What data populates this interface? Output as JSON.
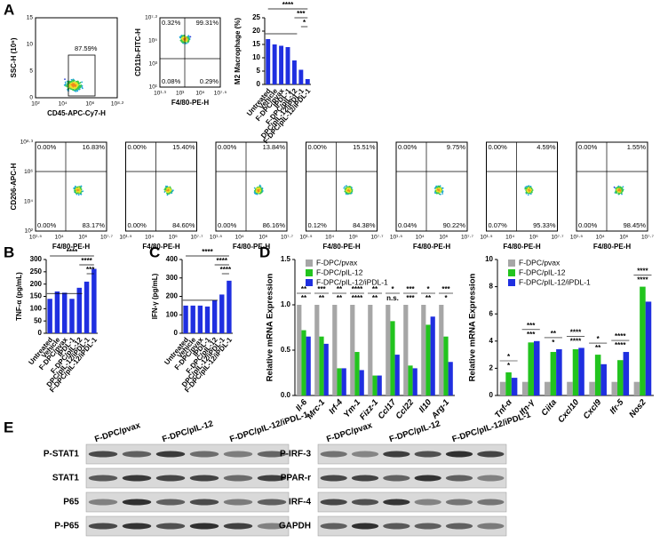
{
  "panel_labels": [
    "A",
    "B",
    "C",
    "D",
    "E"
  ],
  "flow": {
    "top": [
      {
        "ylabel": "SSC-H (10⁶)",
        "xlabel": "CD45-APC-Cy7-H",
        "yticks": [
          "15",
          "10",
          "5",
          "0"
        ],
        "xticks": [
          "10²",
          "10⁴",
          "10⁶",
          "10⁸·²"
        ],
        "gate": "87.59%"
      },
      {
        "ylabel": "CD11b-FITC-H",
        "xlabel": "F4/80-PE-H",
        "yticks": [
          "10⁷·²",
          "10⁵",
          "10³",
          "10¹"
        ],
        "xticks": [
          "10¹·³",
          "10³",
          "10⁵",
          "10⁷·⁵"
        ],
        "quadrants": [
          "0.32%",
          "99.31%",
          "0.08%",
          "0.29%"
        ]
      }
    ],
    "cd206": {
      "ylabel": "CD206-APC-H",
      "xlabel": "F4/80-PE-H",
      "yticks": [
        "10⁸·³",
        "10⁶",
        "10⁴",
        "10²"
      ],
      "xticks": [
        "10¹·⁵",
        "10⁴",
        "10⁶",
        "10⁷·⁷"
      ],
      "plots": [
        [
          "0.00%",
          "16.83%",
          "0.00%",
          "83.17%"
        ],
        [
          "0.00%",
          "15.40%",
          "0.00%",
          "84.60%"
        ],
        [
          "0.00%",
          "13.84%",
          "0.00%",
          "86.16%"
        ],
        [
          "0.00%",
          "15.51%",
          "0.12%",
          "84.38%"
        ],
        [
          "0.00%",
          "9.75%",
          "0.04%",
          "90.22%"
        ],
        [
          "0.00%",
          "4.59%",
          "0.07%",
          "95.33%"
        ],
        [
          "0.00%",
          "1.55%",
          "0.00%",
          "98.45%"
        ]
      ]
    }
  },
  "chart_data": [
    {
      "type": "bar",
      "ylabel": "M2 Macrophage (%)",
      "categories": [
        "Untreated",
        "Vehicle",
        "F-DPC/pvax",
        "IPDL-1",
        "F-DPC/pIL-12",
        "DPC/pIL-12/iPDL-1",
        "F-DPC/pIL-12/iPDL-1"
      ],
      "values": [
        17,
        15,
        14.5,
        14,
        9,
        5.5,
        2
      ],
      "color": "#1f2fe0",
      "ylim": [
        0,
        25
      ],
      "yticks": [
        0,
        5,
        10,
        15,
        20,
        25
      ],
      "annotations": [
        "****",
        "***",
        "*"
      ]
    },
    {
      "type": "bar",
      "ylabel": "TNF-α (pg/mL)",
      "categories": [
        "Untreated",
        "Vehicle",
        "F-DPC/pvax",
        "IPDL-1",
        "F-DPC/pIL-12",
        "DPC/pIL-12/iPDL-1",
        "F-DPC/pIL-12/iPDL-1"
      ],
      "values": [
        140,
        170,
        165,
        140,
        185,
        210,
        262
      ],
      "color": "#1f2fe0",
      "ylim": [
        0,
        300
      ],
      "yticks": [
        0,
        50,
        100,
        150,
        200,
        250,
        300
      ],
      "annotations": [
        "****",
        "****",
        "***"
      ]
    },
    {
      "type": "bar",
      "ylabel": "IFN-γ (pg/mL)",
      "categories": [
        "Untreated",
        "Vehicle",
        "F-DPC/pvax",
        "IPDL-1",
        "F-DPC/pIL-12",
        "DPC/pIL-12/iPDL-1",
        "F-DPC/pIL-12/iPDL-1"
      ],
      "values": [
        150,
        150,
        150,
        145,
        180,
        210,
        285
      ],
      "color": "#1f2fe0",
      "ylim": [
        0,
        400
      ],
      "yticks": [
        0,
        100,
        200,
        300,
        400
      ],
      "annotations": [
        "****",
        "****",
        "****"
      ]
    },
    {
      "type": "bar",
      "ylabel": "Relative mRNA Expression",
      "categories": [
        "Il-6",
        "Mrc-1",
        "Irf-4",
        "Ym-1",
        "Fizz-1",
        "Ccl17",
        "Ccl22",
        "Il10",
        "Arg-1"
      ],
      "series": [
        {
          "name": "F-DPC/pvax",
          "color": "#a6a6a6",
          "values": [
            1,
            1,
            1,
            1,
            1,
            1,
            1,
            1,
            1
          ]
        },
        {
          "name": "F-DPC/pIL-12",
          "color": "#22c41e",
          "values": [
            0.72,
            0.65,
            0.3,
            0.48,
            0.22,
            0.82,
            0.33,
            0.78,
            0.65
          ]
        },
        {
          "name": "F-DPC/pIL-12/iPDL-1",
          "color": "#1f2fe0",
          "values": [
            0.65,
            0.57,
            0.3,
            0.28,
            0.22,
            0.45,
            0.3,
            0.87,
            0.37
          ]
        }
      ],
      "ylim": [
        0,
        1.5
      ],
      "yticks": [
        {
          "value": 0,
          "label": "0.0"
        },
        0.5,
        {
          "value": 1,
          "label": "1.0"
        },
        1.5
      ],
      "significance": [
        [
          "**",
          "**"
        ],
        [
          "***",
          "**"
        ],
        [
          "**",
          "**"
        ],
        [
          "****",
          "****"
        ],
        [
          "**",
          "**"
        ],
        [
          "*",
          "n.s."
        ],
        [
          "***",
          "***"
        ],
        [
          "*",
          "**"
        ],
        [
          "***",
          "*"
        ]
      ]
    },
    {
      "type": "bar",
      "ylabel": "Relative mRNA Expression",
      "categories": [
        "Tnf-α",
        "Ifn-γ",
        "Ciita",
        "Cxcl10",
        "Cxcl9",
        "Ifr-5",
        "Nos2"
      ],
      "series": [
        {
          "name": "F-DPC/pvax",
          "color": "#a6a6a6",
          "values": [
            1,
            1,
            1,
            1,
            1,
            1,
            1
          ]
        },
        {
          "name": "F-DPC/pIL-12",
          "color": "#22c41e",
          "values": [
            1.7,
            3.9,
            3.2,
            3.4,
            3.0,
            2.6,
            8.0
          ]
        },
        {
          "name": "F-DPC/pIL-12/iPDL-1",
          "color": "#1f2fe0",
          "values": [
            1.3,
            4.0,
            3.4,
            3.5,
            2.3,
            3.2,
            6.9
          ]
        }
      ],
      "ylim": [
        0,
        10
      ],
      "yticks": [
        0,
        2,
        4,
        6,
        8,
        10
      ],
      "significance": [
        [
          "*",
          "*"
        ],
        [
          "***",
          "***"
        ],
        [
          "**",
          "*"
        ],
        [
          "****",
          "****"
        ],
        [
          "*",
          "**"
        ],
        [
          "****",
          "****"
        ],
        [
          "****",
          "****"
        ]
      ]
    }
  ],
  "blots": {
    "left": {
      "columns": [
        "F-DPC/pvax",
        "F-DPC/pIL-12",
        "F-DPC/pIL-12/iPDL-1"
      ],
      "rows": [
        "P-STAT1",
        "STAT1",
        "P65",
        "P-P65"
      ]
    },
    "right": {
      "columns": [
        "F-DPC/pvax",
        "F-DPC/pIL-12",
        "F-DPC/pIL-12/iPDL-1"
      ],
      "rows": [
        "P-IRF-3",
        "PPAR-r",
        "IRF-4",
        "GAPDH"
      ]
    }
  }
}
